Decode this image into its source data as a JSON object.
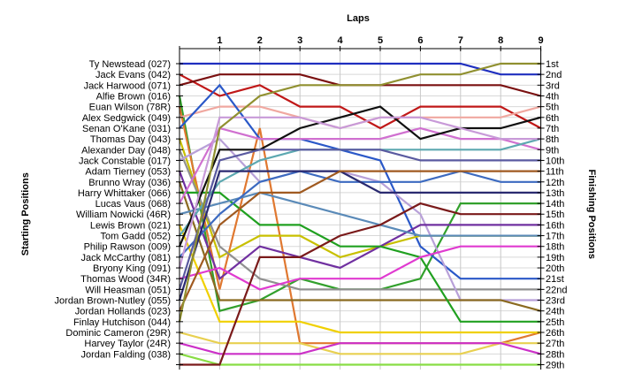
{
  "chart_data": {
    "type": "line",
    "xlabel": "Laps",
    "ylabel_left": "Starting Positions",
    "ylabel_right": "Finishing Positions",
    "x": [
      0,
      1,
      2,
      3,
      4,
      5,
      6,
      7,
      8,
      9
    ],
    "x_tick_labels": [
      "1",
      "2",
      "3",
      "4",
      "5",
      "6",
      "7",
      "8",
      "9"
    ],
    "ylim": [
      1,
      29
    ],
    "y_inverted": true,
    "grid": true,
    "finishing_labels": [
      "1st",
      "2nd",
      "3rd",
      "4th",
      "5th",
      "6th",
      "7th",
      "8th",
      "9th",
      "10th",
      "11th",
      "12th",
      "13th",
      "14th",
      "15th",
      "16th",
      "17th",
      "18th",
      "19th",
      "20th",
      "21st",
      "22nd",
      "23rd",
      "24th",
      "25th",
      "26th",
      "27th",
      "28th",
      "29th"
    ],
    "series": [
      {
        "name": "Ty Newstead (027)",
        "color": "#1f2fbf",
        "values": [
          1,
          1,
          1,
          1,
          1,
          1,
          1,
          1,
          2,
          2
        ]
      },
      {
        "name": "Jack Evans (042)",
        "color": "#c01818",
        "values": [
          2,
          4,
          3,
          5,
          5,
          7,
          5,
          5,
          5,
          7
        ]
      },
      {
        "name": "Jack Harwood (071)",
        "color": "#7a1010",
        "values": [
          3,
          2,
          2,
          2,
          3,
          3,
          3,
          3,
          3,
          4
        ]
      },
      {
        "name": "Alfie Brown (016)",
        "color": "#32a02c",
        "values": [
          4,
          24,
          23,
          21,
          22,
          22,
          21,
          14,
          14,
          14
        ]
      },
      {
        "name": "Euan Wilson (78R)",
        "color": "#e07830",
        "values": [
          5,
          22,
          7,
          27,
          27,
          27,
          27,
          27,
          27,
          26
        ]
      },
      {
        "name": "Alex Sedgwick (049)",
        "color": "#f0a8a0",
        "values": [
          6,
          5,
          5,
          6,
          7,
          6,
          6,
          6,
          6,
          5
        ]
      },
      {
        "name": "Senan O'Kane (031)",
        "color": "#2a58c8",
        "values": [
          7,
          3,
          8,
          8,
          9,
          10,
          18,
          21,
          21,
          21
        ]
      },
      {
        "name": "Thomas Day (043)",
        "color": "#c8c000",
        "values": [
          8,
          19,
          17,
          17,
          19,
          18,
          17,
          17,
          17,
          17
        ]
      },
      {
        "name": "Alexander Day (048)",
        "color": "#909090",
        "values": [
          9,
          18,
          21,
          22,
          22,
          22,
          22,
          22,
          22,
          22
        ]
      },
      {
        "name": "Jack Constable (017)",
        "color": "#b8a0d8",
        "values": [
          10,
          8,
          12,
          11,
          11,
          12,
          15,
          23,
          23,
          23
        ]
      },
      {
        "name": "Adam Tierney (053)",
        "color": "#7030a0",
        "values": [
          11,
          21,
          18,
          19,
          20,
          18,
          16,
          16,
          16,
          16
        ]
      },
      {
        "name": "Brunno Wray (036)",
        "color": "#8a6a20",
        "values": [
          12,
          23,
          23,
          23,
          23,
          23,
          23,
          23,
          23,
          24
        ]
      },
      {
        "name": "Harry Whittaker (066)",
        "color": "#20a020",
        "values": [
          13,
          13,
          16,
          16,
          18,
          18,
          19,
          25,
          25,
          25
        ]
      },
      {
        "name": "Lucas Vaus (068)",
        "color": "#d070d0",
        "values": [
          14,
          7,
          8,
          8,
          8,
          8,
          7,
          8,
          8,
          9
        ]
      },
      {
        "name": "William Nowicki (46R)",
        "color": "#5a8ab8",
        "values": [
          15,
          14,
          13,
          14,
          15,
          16,
          17,
          17,
          17,
          17
        ]
      },
      {
        "name": "Lewis Brown (021)",
        "color": "#f0d000",
        "values": [
          16,
          25,
          25,
          25,
          26,
          26,
          26,
          26,
          26,
          26
        ]
      },
      {
        "name": "Tom Gadd (052)",
        "color": "#5ca8b0",
        "values": [
          17,
          12,
          10,
          9,
          9,
          9,
          9,
          9,
          9,
          8
        ]
      },
      {
        "name": "Philip Rawson (009)",
        "color": "#101010",
        "values": [
          18,
          9,
          9,
          7,
          6,
          5,
          8,
          7,
          7,
          6
        ]
      },
      {
        "name": "Jack McCarthy (081)",
        "color": "#3c6ac0",
        "values": [
          19,
          15,
          12,
          11,
          12,
          12,
          12,
          11,
          12,
          12
        ]
      },
      {
        "name": "Bryony King (091)",
        "color": "#c89ad8",
        "values": [
          20,
          6,
          6,
          6,
          7,
          6,
          6,
          7,
          8,
          8
        ]
      },
      {
        "name": "Thomas Wood (34R)",
        "color": "#e03ad0",
        "values": [
          21,
          20,
          22,
          21,
          21,
          21,
          19,
          18,
          18,
          18
        ]
      },
      {
        "name": "Will Heasman (051)",
        "color": "#5a5aa0",
        "values": [
          22,
          10,
          9,
          9,
          9,
          9,
          10,
          10,
          10,
          10
        ]
      },
      {
        "name": "Jordan Brown-Nutley (055)",
        "color": "#2a2a70",
        "values": [
          23,
          11,
          11,
          11,
          11,
          13,
          13,
          13,
          13,
          13
        ]
      },
      {
        "name": "Jordan Hollands (023)",
        "color": "#a05a20",
        "values": [
          24,
          16,
          13,
          13,
          11,
          11,
          11,
          11,
          11,
          11
        ]
      },
      {
        "name": "Finlay Hutchison (044)",
        "color": "#909030",
        "values": [
          25,
          7,
          4,
          3,
          3,
          3,
          2,
          2,
          1,
          1
        ]
      },
      {
        "name": "Dominic Cameron (29R)",
        "color": "#e8d050",
        "values": [
          26,
          27,
          27,
          27,
          28,
          28,
          28,
          28,
          27,
          27
        ]
      },
      {
        "name": "Harvey Taylor (24R)",
        "color": "#cc30c8",
        "values": [
          27,
          28,
          28,
          28,
          27,
          27,
          27,
          27,
          27,
          28
        ]
      },
      {
        "name": "Jordan Falding (038)",
        "color": "#88dd44",
        "values": [
          28,
          29,
          29,
          29,
          29,
          29,
          29,
          29,
          29,
          29
        ]
      },
      {
        "name": "",
        "color": "#7a1a1a",
        "values": [
          29,
          29,
          19,
          19,
          17,
          16,
          14,
          15,
          15,
          15
        ]
      }
    ]
  }
}
